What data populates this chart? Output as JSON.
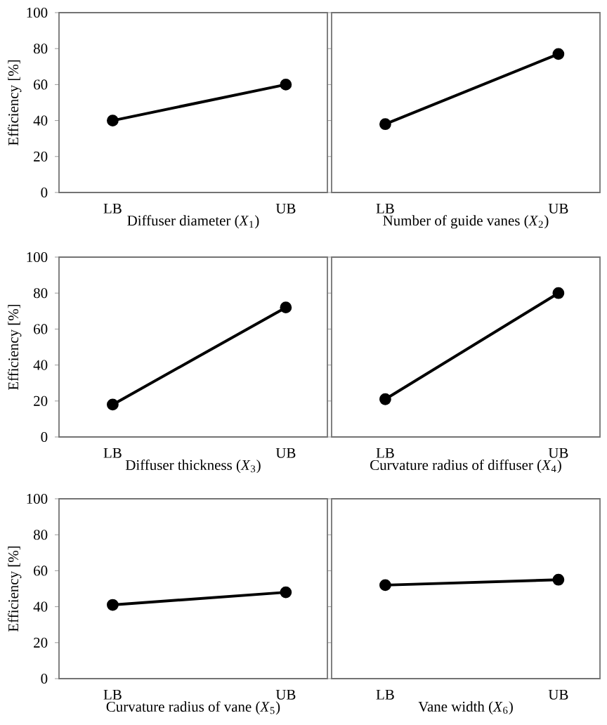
{
  "chart_data": [
    {
      "type": "line",
      "xlabel": "Diffuser diameter (*X*$_{1}$)",
      "ylabel": "Efficiency [%]",
      "categories": [
        "LB",
        "UB"
      ],
      "series": [
        {
          "color": "#000000",
          "values": [
            40,
            60
          ]
        }
      ],
      "ylim": [
        0,
        100
      ],
      "yticks": [
        0,
        20,
        40,
        60,
        80,
        100
      ],
      "marker": "circle",
      "line_style": "solid",
      "grid": false
    },
    {
      "type": "line",
      "xlabel": "Number of guide vanes (*X*$_{2}$)",
      "categories": [
        "LB",
        "UB"
      ],
      "series": [
        {
          "color": "#000000",
          "values": [
            38,
            77
          ]
        }
      ],
      "ylim": [
        0,
        100
      ],
      "yticks": [
        0,
        20,
        40,
        60,
        80,
        100
      ],
      "tick_labels": "x",
      "marker": "circle",
      "line_style": "solid",
      "grid": false
    },
    {
      "type": "line",
      "xlabel": "Diffuser thickness (*X*$_{3}$)",
      "ylabel": "Efficiency [%]",
      "categories": [
        "LB",
        "UB"
      ],
      "series": [
        {
          "color": "#000000",
          "values": [
            18,
            72
          ]
        }
      ],
      "ylim": [
        0,
        100
      ],
      "yticks": [
        0,
        20,
        40,
        60,
        80,
        100
      ],
      "marker": "circle",
      "line_style": "solid",
      "grid": false
    },
    {
      "type": "line",
      "xlabel": "Curvature radius of diffuser  (*X*$_{4}$)",
      "categories": [
        "LB",
        "UB"
      ],
      "series": [
        {
          "color": "#000000",
          "values": [
            21,
            80
          ]
        }
      ],
      "ylim": [
        0,
        100
      ],
      "yticks": [
        0,
        20,
        40,
        60,
        80,
        100
      ],
      "tick_labels": "x",
      "marker": "circle",
      "line_style": "solid",
      "grid": false
    },
    {
      "type": "line",
      "xlabel": "Curvature radius of vane (*X*$_{5}$)",
      "ylabel": "Efficiency [%]",
      "categories": [
        "LB",
        "UB"
      ],
      "series": [
        {
          "color": "#000000",
          "values": [
            41,
            48
          ]
        }
      ],
      "ylim": [
        0,
        100
      ],
      "yticks": [
        0,
        20,
        40,
        60,
        80,
        100
      ],
      "marker": "circle",
      "line_style": "solid",
      "grid": false
    },
    {
      "type": "line",
      "xlabel": "Vane width (*X*$_{6}$)",
      "categories": [
        "LB",
        "UB"
      ],
      "series": [
        {
          "color": "#000000",
          "values": [
            52,
            55
          ]
        }
      ],
      "ylim": [
        0,
        100
      ],
      "yticks": [
        0,
        20,
        40,
        60,
        80,
        100
      ],
      "tick_labels": "x",
      "marker": "circle",
      "line_style": "solid",
      "grid": false
    }
  ]
}
